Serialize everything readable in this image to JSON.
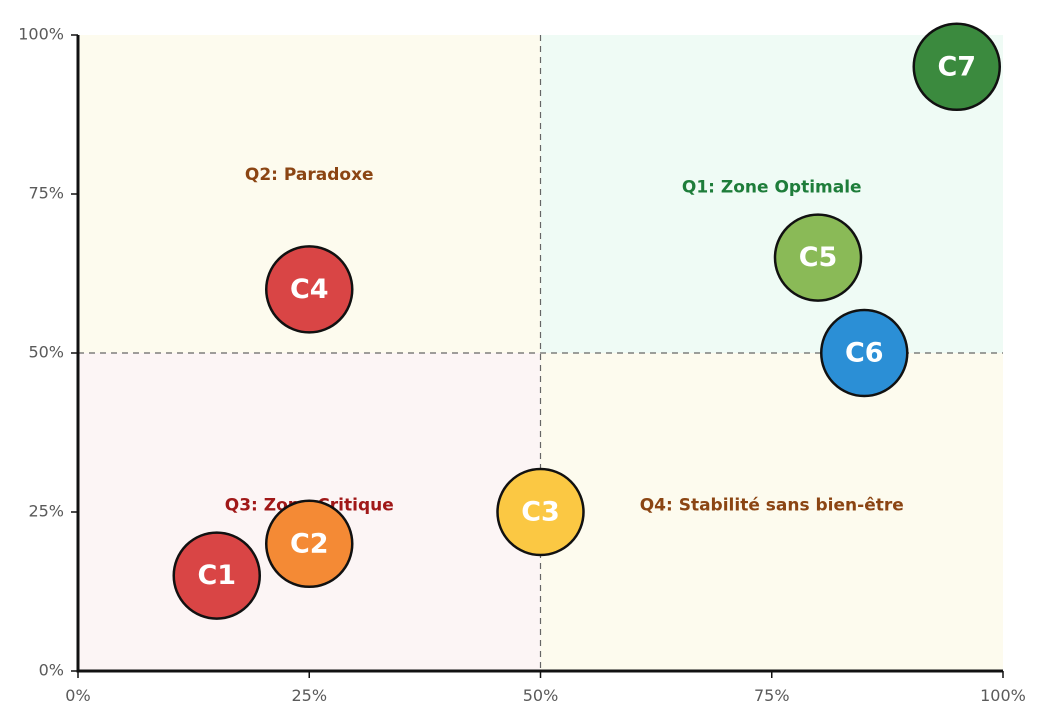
{
  "chart_data": {
    "type": "scatter",
    "title": "",
    "xlabel": "",
    "ylabel": "",
    "xlim": [
      0,
      100
    ],
    "ylim": [
      0,
      100
    ],
    "x_ticks": [
      0,
      25,
      50,
      75,
      100
    ],
    "y_ticks": [
      0,
      25,
      50,
      75,
      100
    ],
    "x_tick_labels": [
      "0%",
      "25%",
      "50%",
      "75%",
      "100%"
    ],
    "y_tick_labels": [
      "0%",
      "25%",
      "50%",
      "75%",
      "100%"
    ],
    "threshold_x": 50,
    "threshold_y": 50,
    "quadrants": [
      {
        "id": "q2",
        "label": "Q2: Paradoxe",
        "label_x": 25,
        "label_y": 78,
        "bg_color": "#fdfbee",
        "text_color": "#8b4513"
      },
      {
        "id": "q1",
        "label": "Q1: Zone Optimale",
        "label_x": 75,
        "label_y": 76,
        "bg_color": "#effbf5",
        "text_color": "#1e7d3a"
      },
      {
        "id": "q3",
        "label": "Q3: Zone Critique",
        "label_x": 25,
        "label_y": 26,
        "bg_color": "#fcf5f5",
        "text_color": "#a01818"
      },
      {
        "id": "q4",
        "label": "Q4: Stabilité sans bien-être",
        "label_x": 75,
        "label_y": 26,
        "bg_color": "#fdfbee",
        "text_color": "#8b4513"
      }
    ],
    "points": [
      {
        "name": "C1",
        "x": 15,
        "y": 15,
        "color": "#d94545"
      },
      {
        "name": "C2",
        "x": 25,
        "y": 20,
        "color": "#f48a35"
      },
      {
        "name": "C3",
        "x": 50,
        "y": 25,
        "color": "#fbc843"
      },
      {
        "name": "C4",
        "x": 25,
        "y": 60,
        "color": "#d94545"
      },
      {
        "name": "C5",
        "x": 80,
        "y": 65,
        "color": "#8aba57"
      },
      {
        "name": "C6",
        "x": 85,
        "y": 50,
        "color": "#2b8fd6"
      },
      {
        "name": "C7",
        "x": 95,
        "y": 95,
        "color": "#3b8a3e"
      }
    ]
  }
}
